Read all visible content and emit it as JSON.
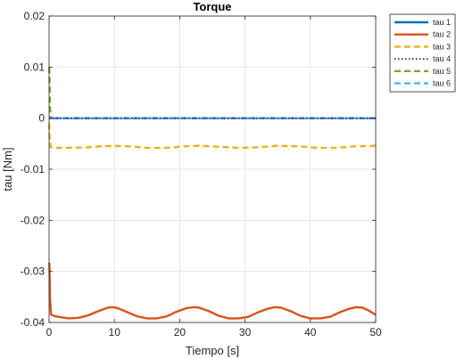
{
  "chart_data": {
    "type": "line",
    "title": "Torque",
    "xlabel": "Tiempo [s]",
    "ylabel": "tau [Nm]",
    "xlim": [
      0,
      50
    ],
    "ylim": [
      -0.04,
      0.02
    ],
    "xticks": [
      0,
      10,
      20,
      30,
      40,
      50
    ],
    "yticks": [
      -0.04,
      -0.03,
      -0.02,
      -0.01,
      0,
      0.01,
      0.02
    ],
    "xtick_labels": [
      "0",
      "10",
      "20",
      "30",
      "40",
      "50"
    ],
    "ytick_labels": [
      "-0.04",
      "-0.03",
      "-0.02",
      "-0.01",
      "0",
      "0.01",
      "0.02"
    ],
    "grid": true,
    "legend_position": "outside top-right",
    "series": [
      {
        "name": "tau 1",
        "color": "#0072bd",
        "style": "solid",
        "x": [
          0,
          0.15,
          50
        ],
        "y": [
          0,
          0,
          0
        ]
      },
      {
        "name": "tau 2",
        "color": "#d95319",
        "style": "solid",
        "x": [
          0,
          0.05,
          0.15,
          0.3,
          1,
          2,
          3,
          4.5,
          6,
          7.5,
          9,
          9.8,
          10.5,
          12,
          13.5,
          15,
          16.5,
          18,
          19.5,
          21,
          22.2,
          23,
          24.5,
          26,
          27.5,
          29,
          30.5,
          32,
          33.5,
          34.6,
          35.5,
          37,
          38.5,
          40,
          41.5,
          43,
          44.5,
          46,
          47,
          48,
          49,
          50
        ],
        "y": [
          -0.0283,
          -0.0285,
          -0.0355,
          -0.0385,
          -0.0388,
          -0.039,
          -0.0392,
          -0.0391,
          -0.0386,
          -0.0378,
          -0.0371,
          -0.037,
          -0.0372,
          -0.038,
          -0.0388,
          -0.0392,
          -0.0392,
          -0.0388,
          -0.0379,
          -0.0372,
          -0.037,
          -0.0371,
          -0.0378,
          -0.0387,
          -0.0392,
          -0.0392,
          -0.0389,
          -0.038,
          -0.0373,
          -0.037,
          -0.0371,
          -0.0378,
          -0.0387,
          -0.0392,
          -0.0392,
          -0.0389,
          -0.038,
          -0.0373,
          -0.037,
          -0.0371,
          -0.0377,
          -0.0385
        ]
      },
      {
        "name": "tau 3",
        "color": "#edb120",
        "style": "dashed",
        "x": [
          0,
          0.1,
          0.25,
          1,
          3,
          6,
          8,
          10,
          12,
          15,
          18,
          21,
          23,
          26,
          29,
          32,
          35,
          38,
          41,
          44,
          47,
          50
        ],
        "y": [
          -0.001,
          -0.004,
          -0.0057,
          -0.0058,
          -0.0058,
          -0.0057,
          -0.0055,
          -0.0054,
          -0.0055,
          -0.0058,
          -0.0058,
          -0.0055,
          -0.0054,
          -0.0056,
          -0.0058,
          -0.0057,
          -0.0054,
          -0.0055,
          -0.0058,
          -0.0058,
          -0.0055,
          -0.0054
        ]
      },
      {
        "name": "tau 4",
        "color": "#7e2f8e",
        "style": "dotted",
        "x": [
          0,
          50
        ],
        "y": [
          0,
          0
        ]
      },
      {
        "name": "tau 5",
        "color": "#77ac30",
        "style": "dashed",
        "x": [
          0,
          0.05,
          0.15,
          0.3,
          50
        ],
        "y": [
          0.01,
          0.009,
          0.002,
          0,
          0
        ]
      },
      {
        "name": "tau 6",
        "color": "#4dbeee",
        "style": "dashed",
        "x": [
          0,
          50
        ],
        "y": [
          0,
          0
        ]
      }
    ]
  }
}
